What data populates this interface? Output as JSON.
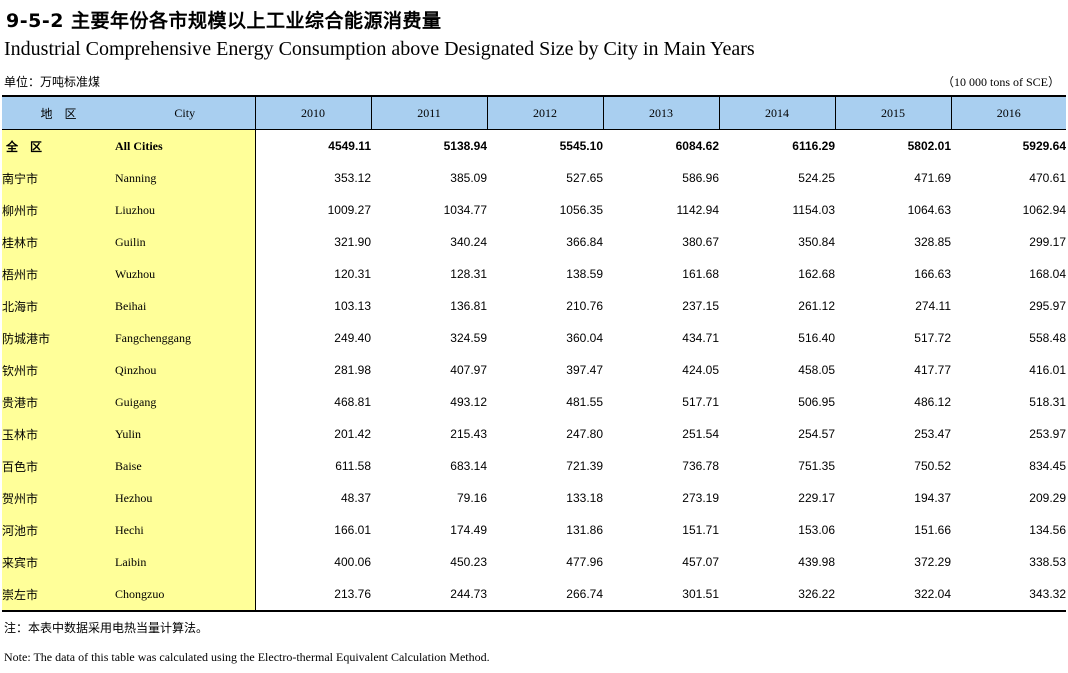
{
  "title_cn": "9-5-2 主要年份各市规模以上工业综合能源消费量",
  "title_en": "Industrial Comprehensive Energy Consumption above Designated Size by City in Main Years",
  "unit_cn": "单位：万吨标准煤",
  "unit_en": "（10 000 tons of SCE）",
  "header": {
    "region": "地　区",
    "city": "City",
    "years": [
      "2010",
      "2011",
      "2012",
      "2013",
      "2014",
      "2015",
      "2016"
    ]
  },
  "rows": [
    {
      "region": "全　区",
      "city": "All Cities",
      "values": [
        "4549.11",
        "5138.94",
        "5545.10",
        "6084.62",
        "6116.29",
        "5802.01",
        "5929.64"
      ]
    },
    {
      "region": "南宁市",
      "city": "Nanning",
      "values": [
        "353.12",
        "385.09",
        "527.65",
        "586.96",
        "524.25",
        "471.69",
        "470.61"
      ]
    },
    {
      "region": "柳州市",
      "city": "Liuzhou",
      "values": [
        "1009.27",
        "1034.77",
        "1056.35",
        "1142.94",
        "1154.03",
        "1064.63",
        "1062.94"
      ]
    },
    {
      "region": "桂林市",
      "city": "Guilin",
      "values": [
        "321.90",
        "340.24",
        "366.84",
        "380.67",
        "350.84",
        "328.85",
        "299.17"
      ]
    },
    {
      "region": "梧州市",
      "city": "Wuzhou",
      "values": [
        "120.31",
        "128.31",
        "138.59",
        "161.68",
        "162.68",
        "166.63",
        "168.04"
      ]
    },
    {
      "region": "北海市",
      "city": "Beihai",
      "values": [
        "103.13",
        "136.81",
        "210.76",
        "237.15",
        "261.12",
        "274.11",
        "295.97"
      ]
    },
    {
      "region": "防城港市",
      "city": "Fangchenggang",
      "values": [
        "249.40",
        "324.59",
        "360.04",
        "434.71",
        "516.40",
        "517.72",
        "558.48"
      ]
    },
    {
      "region": "钦州市",
      "city": "Qinzhou",
      "values": [
        "281.98",
        "407.97",
        "397.47",
        "424.05",
        "458.05",
        "417.77",
        "416.01"
      ]
    },
    {
      "region": "贵港市",
      "city": "Guigang",
      "values": [
        "468.81",
        "493.12",
        "481.55",
        "517.71",
        "506.95",
        "486.12",
        "518.31"
      ]
    },
    {
      "region": "玉林市",
      "city": "Yulin",
      "values": [
        "201.42",
        "215.43",
        "247.80",
        "251.54",
        "254.57",
        "253.47",
        "253.97"
      ]
    },
    {
      "region": "百色市",
      "city": "Baise",
      "values": [
        "611.58",
        "683.14",
        "721.39",
        "736.78",
        "751.35",
        "750.52",
        "834.45"
      ]
    },
    {
      "region": "贺州市",
      "city": "Hezhou",
      "values": [
        "48.37",
        "79.16",
        "133.18",
        "273.19",
        "229.17",
        "194.37",
        "209.29"
      ]
    },
    {
      "region": "河池市",
      "city": "Hechi",
      "values": [
        "166.01",
        "174.49",
        "131.86",
        "151.71",
        "153.06",
        "151.66",
        "134.56"
      ]
    },
    {
      "region": "来宾市",
      "city": "Laibin",
      "values": [
        "400.06",
        "450.23",
        "477.96",
        "457.07",
        "439.98",
        "372.29",
        "338.53"
      ]
    },
    {
      "region": "崇左市",
      "city": "Chongzuo",
      "values": [
        "213.76",
        "244.73",
        "266.74",
        "301.51",
        "326.22",
        "322.04",
        "343.32"
      ]
    }
  ],
  "note_cn": "注：本表中数据采用电热当量计算法。",
  "note_en": "Note: The data of this table was calculated using the Electro-thermal Equivalent Calculation Method."
}
